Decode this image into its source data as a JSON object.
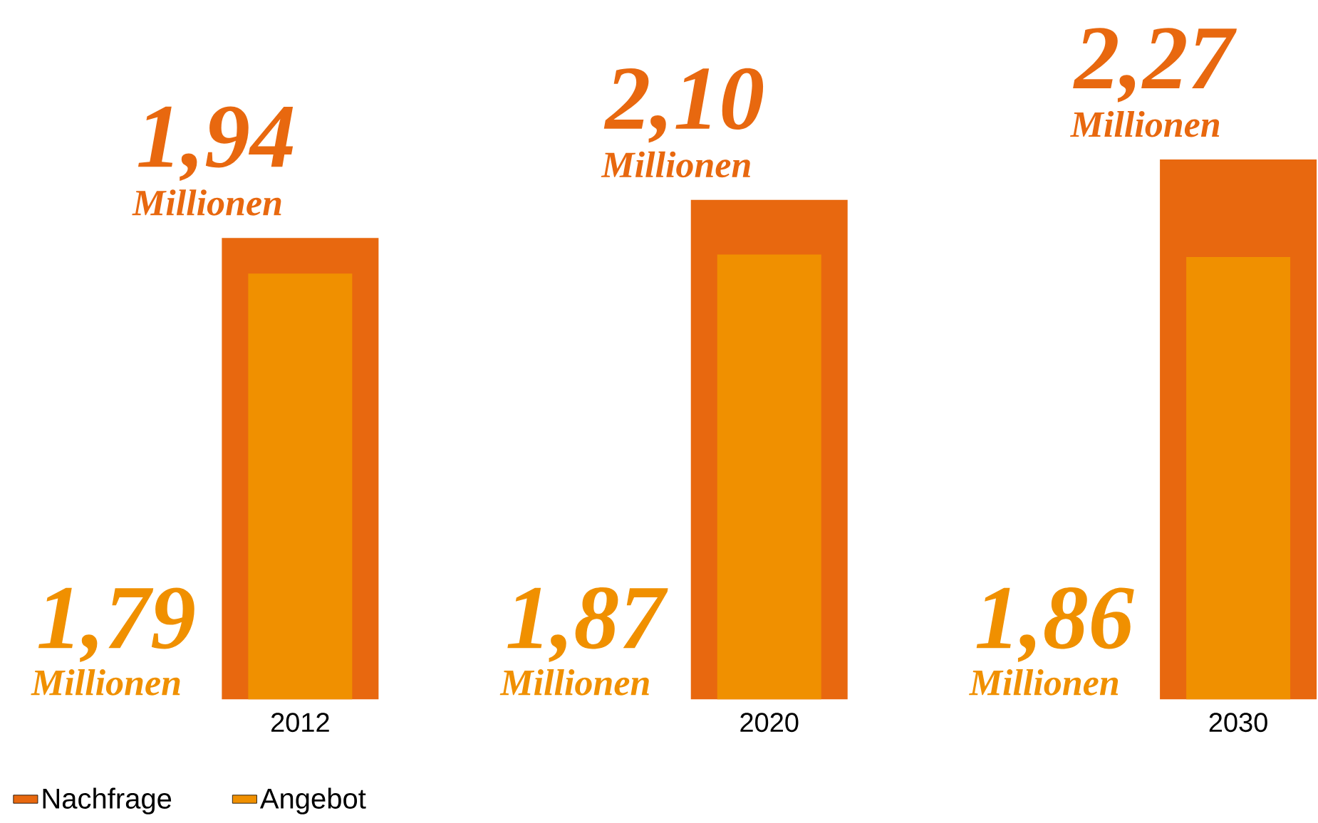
{
  "chart_data": {
    "type": "bar",
    "categories": [
      "2012",
      "2020",
      "2030"
    ],
    "series": [
      {
        "name": "Nachfrage",
        "color": "#e8680f",
        "values": [
          1.94,
          2.1,
          2.27
        ],
        "value_labels": [
          "1,94",
          "2,10",
          "2,27"
        ]
      },
      {
        "name": "Angebot",
        "color": "#f09000",
        "values": [
          1.79,
          1.87,
          1.86
        ]
      }
    ],
    "annotations": [
      {
        "text": "Millionen",
        "x": "2012",
        "y": 1.94
      },
      {
        "text": "Millionen",
        "x": "2020",
        "y": 2.1
      },
      {
        "text": "Millionen",
        "x": "2030",
        "y": 2.27
      },
      "1,79",
      "Millionen",
      "1,87",
      "Millionen",
      "1,86",
      "Millionen"
    ],
    "legend": "bottom",
    "tick_labels": "x"
  }
}
